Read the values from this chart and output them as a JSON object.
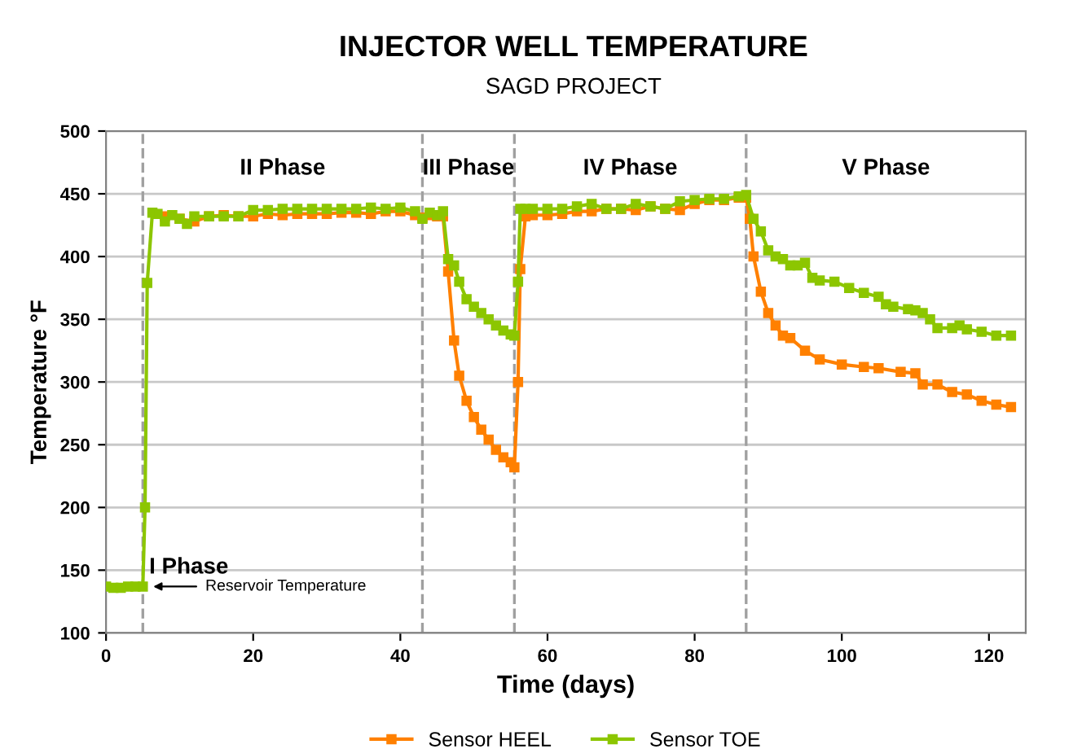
{
  "chart_data": {
    "type": "line",
    "title": "INJECTOR WELL TEMPERATURE",
    "subtitle": "SAGD PROJECT",
    "xlabel": "Time (days)",
    "ylabel": "Temperature °F",
    "xlim": [
      0,
      125
    ],
    "xticks": [
      0,
      20,
      40,
      60,
      80,
      100,
      120
    ],
    "ylim": [
      100,
      500
    ],
    "yticks": [
      100,
      150,
      200,
      250,
      300,
      350,
      400,
      450,
      500
    ],
    "grid": "y",
    "legend": "bottom",
    "marker": "square",
    "line_style": "solid",
    "ref_lines": [
      {
        "axis": "x",
        "value": 5,
        "color": "#a0a0a0",
        "line_style": "dashed"
      },
      {
        "axis": "x",
        "value": 43,
        "color": "#a0a0a0",
        "line_style": "dashed"
      },
      {
        "axis": "x",
        "value": 55.5,
        "color": "#a0a0a0",
        "line_style": "dashed"
      },
      {
        "axis": "x",
        "value": 87,
        "color": "#a0a0a0",
        "line_style": "dashed"
      }
    ],
    "annotations": [
      "I Phase",
      "II Phase",
      "III Phase",
      "IV Phase",
      "V Phase",
      {
        "text": "Reservoir Temperature",
        "x": 5.5,
        "y": 137
      }
    ],
    "series": [
      {
        "name": "Sensor HEEL",
        "color": "#ff8000",
        "x": [
          8,
          10,
          12,
          14,
          16,
          18,
          20,
          22,
          24,
          26,
          28,
          30,
          32,
          34,
          36,
          38,
          40,
          42,
          43,
          44,
          45,
          45.8,
          46.5,
          47.3,
          48,
          49,
          50,
          51,
          52,
          53,
          54,
          55,
          55.5,
          56,
          56.3,
          57,
          58,
          60,
          62,
          64,
          66,
          68,
          70,
          72,
          74,
          76,
          78,
          80,
          82,
          84,
          86,
          87,
          87.5,
          88,
          89,
          90,
          91,
          92,
          93,
          95,
          97,
          100,
          103,
          105,
          108,
          110,
          111,
          113,
          115,
          117,
          119,
          121,
          123
        ],
        "values": [
          432,
          430,
          428,
          432,
          433,
          432,
          432,
          434,
          433,
          434,
          434,
          434,
          435,
          435,
          434,
          436,
          436,
          433,
          431,
          433,
          432,
          432,
          388,
          333,
          305,
          285,
          272,
          262,
          254,
          246,
          240,
          236,
          232,
          300,
          390,
          432,
          433,
          433,
          434,
          436,
          436,
          438,
          438,
          437,
          440,
          438,
          437,
          442,
          445,
          445,
          447,
          447,
          430,
          400,
          372,
          355,
          345,
          337,
          335,
          325,
          318,
          314,
          312,
          311,
          308,
          307,
          298,
          298,
          292,
          290,
          285,
          282,
          280
        ]
      },
      {
        "name": "Sensor TOE",
        "color": "#8cc600",
        "x": [
          0,
          1,
          2,
          3,
          4,
          5,
          5.3,
          5.6,
          6.3,
          7,
          8,
          9,
          10,
          11,
          12,
          14,
          16,
          18,
          20,
          22,
          24,
          26,
          28,
          30,
          32,
          34,
          36,
          38,
          40,
          42,
          43,
          44,
          45,
          45.8,
          46.5,
          47.3,
          48,
          49,
          50,
          51,
          52,
          53,
          54,
          55,
          55.5,
          56,
          56.3,
          57,
          58,
          60,
          62,
          64,
          66,
          68,
          70,
          72,
          74,
          76,
          78,
          80,
          82,
          84,
          86,
          87,
          88,
          89,
          90,
          91,
          92,
          93,
          94,
          95,
          96,
          97,
          99,
          101,
          103,
          105,
          106,
          107,
          109,
          110,
          111,
          112,
          113,
          115,
          116,
          117,
          119,
          121,
          123
        ],
        "values": [
          137,
          136,
          136,
          137,
          137,
          137,
          200,
          379,
          435,
          434,
          428,
          433,
          430,
          426,
          432,
          432,
          432,
          432,
          437,
          437,
          438,
          438,
          438,
          438,
          438,
          438,
          439,
          438,
          439,
          436,
          430,
          435,
          433,
          436,
          398,
          393,
          380,
          366,
          360,
          355,
          350,
          345,
          341,
          338,
          337,
          380,
          438,
          438,
          438,
          438,
          438,
          440,
          442,
          438,
          438,
          442,
          440,
          438,
          444,
          445,
          446,
          446,
          448,
          449,
          430,
          420,
          405,
          400,
          398,
          393,
          393,
          395,
          383,
          381,
          380,
          375,
          371,
          368,
          362,
          360,
          358,
          357,
          355,
          350,
          343,
          343,
          345,
          342,
          340,
          337,
          337
        ]
      }
    ]
  }
}
